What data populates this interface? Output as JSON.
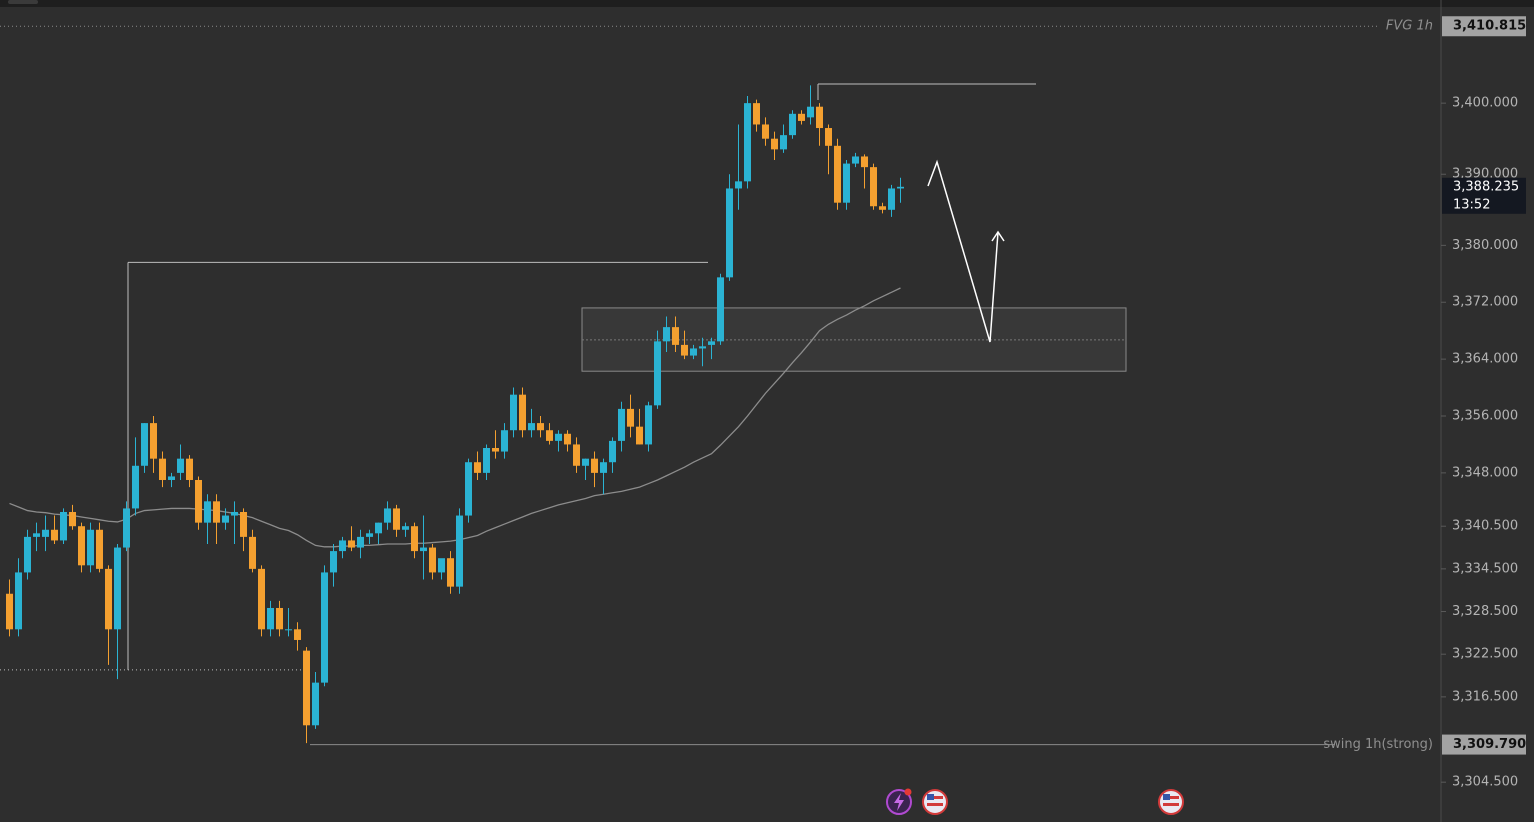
{
  "chart_data": {
    "type": "candlestick",
    "ylim": [
      3298.9,
      3413.1
    ],
    "yticks": [
      {
        "value": 3400,
        "label": "3,400.000"
      },
      {
        "value": 3390,
        "label": "3,390.000"
      },
      {
        "value": 3380,
        "label": "3,380.000"
      },
      {
        "value": 3372,
        "label": "3,372.000"
      },
      {
        "value": 3364,
        "label": "3,364.000"
      },
      {
        "value": 3356,
        "label": "3,356.000"
      },
      {
        "value": 3348,
        "label": "3,348.000"
      },
      {
        "value": 3340.5,
        "label": "3,340.500"
      },
      {
        "value": 3334.5,
        "label": "3,334.500"
      },
      {
        "value": 3328.5,
        "label": "3,328.500"
      },
      {
        "value": 3322.5,
        "label": "3,322.500"
      },
      {
        "value": 3316.5,
        "label": "3,316.500"
      },
      {
        "value": 3304.5,
        "label": "3,304.500"
      }
    ],
    "colors": {
      "up": "#2bb3d3",
      "down": "#f4a030"
    },
    "ohlc": {
      "open": [
        3331,
        3326,
        3334,
        3339,
        3339,
        3340,
        3338.5,
        3342.5,
        3340.5,
        3335,
        3340,
        3334.5,
        3326,
        3337.5,
        3343,
        3349,
        3355,
        3350,
        3347,
        3348,
        3350,
        3347,
        3341,
        3344,
        3341,
        3342,
        3342.5,
        3339,
        3334.5,
        3326,
        3329,
        3326,
        3326,
        3323,
        3312.5,
        3318.5,
        3334,
        3337,
        3338.5,
        3337.5,
        3339,
        3339.5,
        3341,
        3343,
        3340,
        3340.5,
        3337,
        3337.5,
        3334,
        3336,
        3332,
        3342,
        3349.5,
        3348,
        3351.5,
        3351,
        3354,
        3359,
        3354,
        3355,
        3354,
        3352.5,
        3353.5,
        3352,
        3349,
        3350,
        3348,
        3349.5,
        3352.5,
        3357,
        3354.5,
        3352,
        3357.5,
        3366.5,
        3368.5,
        3366,
        3364.5,
        3365.5,
        3366,
        3366.5,
        3375.5,
        3388,
        3389,
        3400,
        3397,
        3395,
        3393.5,
        3395.5,
        3398.5,
        3398,
        3399.5,
        3396.5,
        3394,
        3386,
        3391.5,
        3392.5,
        3391,
        3385.5,
        3385,
        3388
      ],
      "high": [
        3333,
        3336,
        3340,
        3341,
        3342,
        3342,
        3343,
        3343.5,
        3341,
        3341,
        3341,
        3335,
        3338,
        3344,
        3353,
        3355,
        3356,
        3351,
        3348,
        3352,
        3350.5,
        3347.5,
        3345,
        3345,
        3343,
        3344,
        3343,
        3340,
        3335,
        3330,
        3330,
        3329,
        3327,
        3323.5,
        3320,
        3335,
        3338,
        3339,
        3340.5,
        3340,
        3340,
        3341,
        3344,
        3343.5,
        3341,
        3341,
        3342,
        3338,
        3335,
        3337,
        3343,
        3350,
        3351,
        3352,
        3354,
        3355,
        3360,
        3360,
        3357,
        3356,
        3355,
        3354,
        3354,
        3353,
        3350,
        3351,
        3350,
        3353,
        3358,
        3359,
        3357,
        3358,
        3368,
        3370,
        3370,
        3368,
        3366,
        3367,
        3367,
        3376,
        3390,
        3397,
        3401,
        3400.5,
        3398,
        3396,
        3397,
        3399,
        3399,
        3402.5,
        3400,
        3397,
        3395,
        3392,
        3393,
        3392.8,
        3391.5,
        3386,
        3388.5,
        3389.5
      ],
      "low": [
        3325,
        3325,
        3333,
        3337,
        3337,
        3338,
        3338,
        3340,
        3334,
        3334,
        3334,
        3321,
        3319,
        3337,
        3342,
        3348,
        3348,
        3346,
        3346,
        3347,
        3346,
        3340,
        3338,
        3338,
        3340,
        3338,
        3337,
        3334,
        3325,
        3325,
        3325,
        3325,
        3323,
        3310,
        3312,
        3318,
        3332,
        3336,
        3337,
        3336,
        3338,
        3338,
        3340,
        3339,
        3339,
        3336,
        3333,
        3333,
        3333,
        3331,
        3331,
        3341,
        3347,
        3347,
        3350,
        3350,
        3353,
        3353,
        3353,
        3353,
        3352,
        3351,
        3351,
        3348,
        3347,
        3346,
        3345,
        3348,
        3351,
        3353,
        3352,
        3351,
        3357,
        3365,
        3365,
        3364,
        3364,
        3363,
        3364,
        3366,
        3375,
        3385,
        3388,
        3396,
        3394,
        3392,
        3393,
        3395,
        3397,
        3397,
        3394,
        3390,
        3385,
        3385,
        3391,
        3388,
        3385,
        3384.5,
        3384,
        3386
      ],
      "close": [
        3326,
        3334,
        3339,
        3339.5,
        3340,
        3338.5,
        3342.5,
        3340.5,
        3335,
        3340,
        3334.5,
        3326,
        3337.5,
        3343,
        3349,
        3355,
        3350,
        3347,
        3347.5,
        3350,
        3347,
        3341,
        3344,
        3341,
        3342,
        3342.5,
        3339,
        3334.5,
        3326,
        3329,
        3326,
        3326,
        3324.5,
        3312.5,
        3318.5,
        3334,
        3337,
        3338.5,
        3337.5,
        3339,
        3339.5,
        3341,
        3343,
        3340,
        3340.5,
        3337,
        3337.5,
        3334,
        3336,
        3332,
        3342,
        3349.5,
        3348,
        3351.5,
        3351,
        3354,
        3359,
        3354,
        3355,
        3354,
        3352.5,
        3353.5,
        3352,
        3349,
        3350,
        3348,
        3349.5,
        3352.5,
        3357,
        3354.5,
        3352,
        3357.5,
        3366.5,
        3368.5,
        3366,
        3364.5,
        3365.5,
        3365.8,
        3366.5,
        3375.5,
        3388,
        3389,
        3400,
        3397,
        3395,
        3393.5,
        3395.5,
        3398.5,
        3397.5,
        3399.5,
        3396.5,
        3394,
        3386,
        3391.5,
        3392.5,
        3391,
        3385.5,
        3385,
        3388,
        3388.235
      ]
    },
    "ma": {
      "color": "#8c8c8c",
      "values": [
        3343.7,
        3343.2,
        3342.7,
        3342.5,
        3342.4,
        3342.2,
        3342.1,
        3342.0,
        3341.8,
        3341.6,
        3341.4,
        3341.2,
        3341.1,
        3341.5,
        3342.3,
        3342.7,
        3342.8,
        3342.9,
        3343.0,
        3343.0,
        3343.0,
        3342.9,
        3342.8,
        3342.7,
        3342.5,
        3342.3,
        3342.0,
        3341.7,
        3341.2,
        3340.7,
        3340.2,
        3339.9,
        3339.3,
        3338.5,
        3337.8,
        3337.6,
        3337.6,
        3337.7,
        3337.7,
        3337.8,
        3337.8,
        3337.9,
        3338.0,
        3338.0,
        3338.0,
        3338.1,
        3338.1,
        3338.2,
        3338.3,
        3338.4,
        3338.6,
        3338.9,
        3339.2,
        3339.8,
        3340.3,
        3340.8,
        3341.3,
        3341.8,
        3342.3,
        3342.7,
        3343.1,
        3343.5,
        3343.8,
        3344.1,
        3344.4,
        3344.8,
        3345.0,
        3345.2,
        3345.4,
        3345.7,
        3346.0,
        3346.5,
        3347.0,
        3347.6,
        3348.2,
        3348.8,
        3349.5,
        3350.1,
        3350.7,
        3351.9,
        3353.2,
        3354.5,
        3356.0,
        3357.6,
        3359.2,
        3360.6,
        3362.0,
        3363.5,
        3364.9,
        3366.4,
        3368.0,
        3368.9,
        3369.6,
        3370.2,
        3370.9,
        3371.5,
        3372.2,
        3372.8,
        3373.4,
        3374.0
      ]
    },
    "zone": {
      "low": 3362.3,
      "high": 3371.2,
      "mid": 3366.7
    },
    "drawn_levels": [
      3402.7,
      3377.6,
      3320.3
    ],
    "levels": [
      {
        "name": "FVG 1h",
        "value": 3410.815,
        "label": "3,410.815"
      },
      {
        "name": "swing 1h(strong)",
        "value": 3309.79,
        "label": "3,309.790"
      }
    ],
    "last_price": {
      "value": 3388.235,
      "label": "3,388.235",
      "countdown": "13:52"
    }
  }
}
